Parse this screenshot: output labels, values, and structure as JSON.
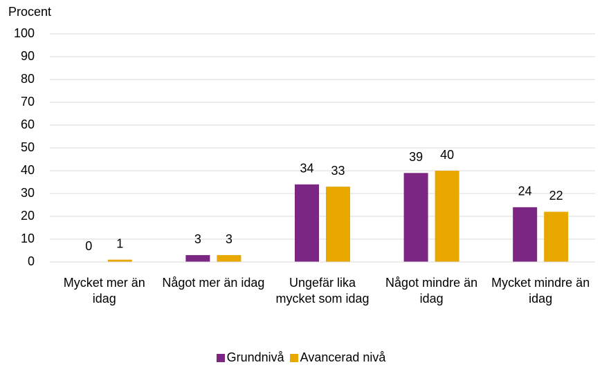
{
  "chart_data": {
    "type": "bar",
    "y_label": "Procent",
    "categories": [
      "Mycket mer än idag",
      "Något mer än idag",
      "Ungefär lika mycket som idag",
      "Något mindre än idag",
      "Mycket mindre än idag"
    ],
    "series": [
      {
        "name": "Grundnivå",
        "color": "#7b2682",
        "values": [
          0,
          3,
          34,
          39,
          24
        ]
      },
      {
        "name": "Avancerad nivå",
        "color": "#e8a800",
        "values": [
          1,
          3,
          33,
          40,
          22
        ]
      }
    ],
    "ylim": [
      0,
      100
    ],
    "yticks": [
      0,
      10,
      20,
      30,
      40,
      50,
      60,
      70,
      80,
      90,
      100
    ],
    "grid": true,
    "legend": "bottom"
  }
}
